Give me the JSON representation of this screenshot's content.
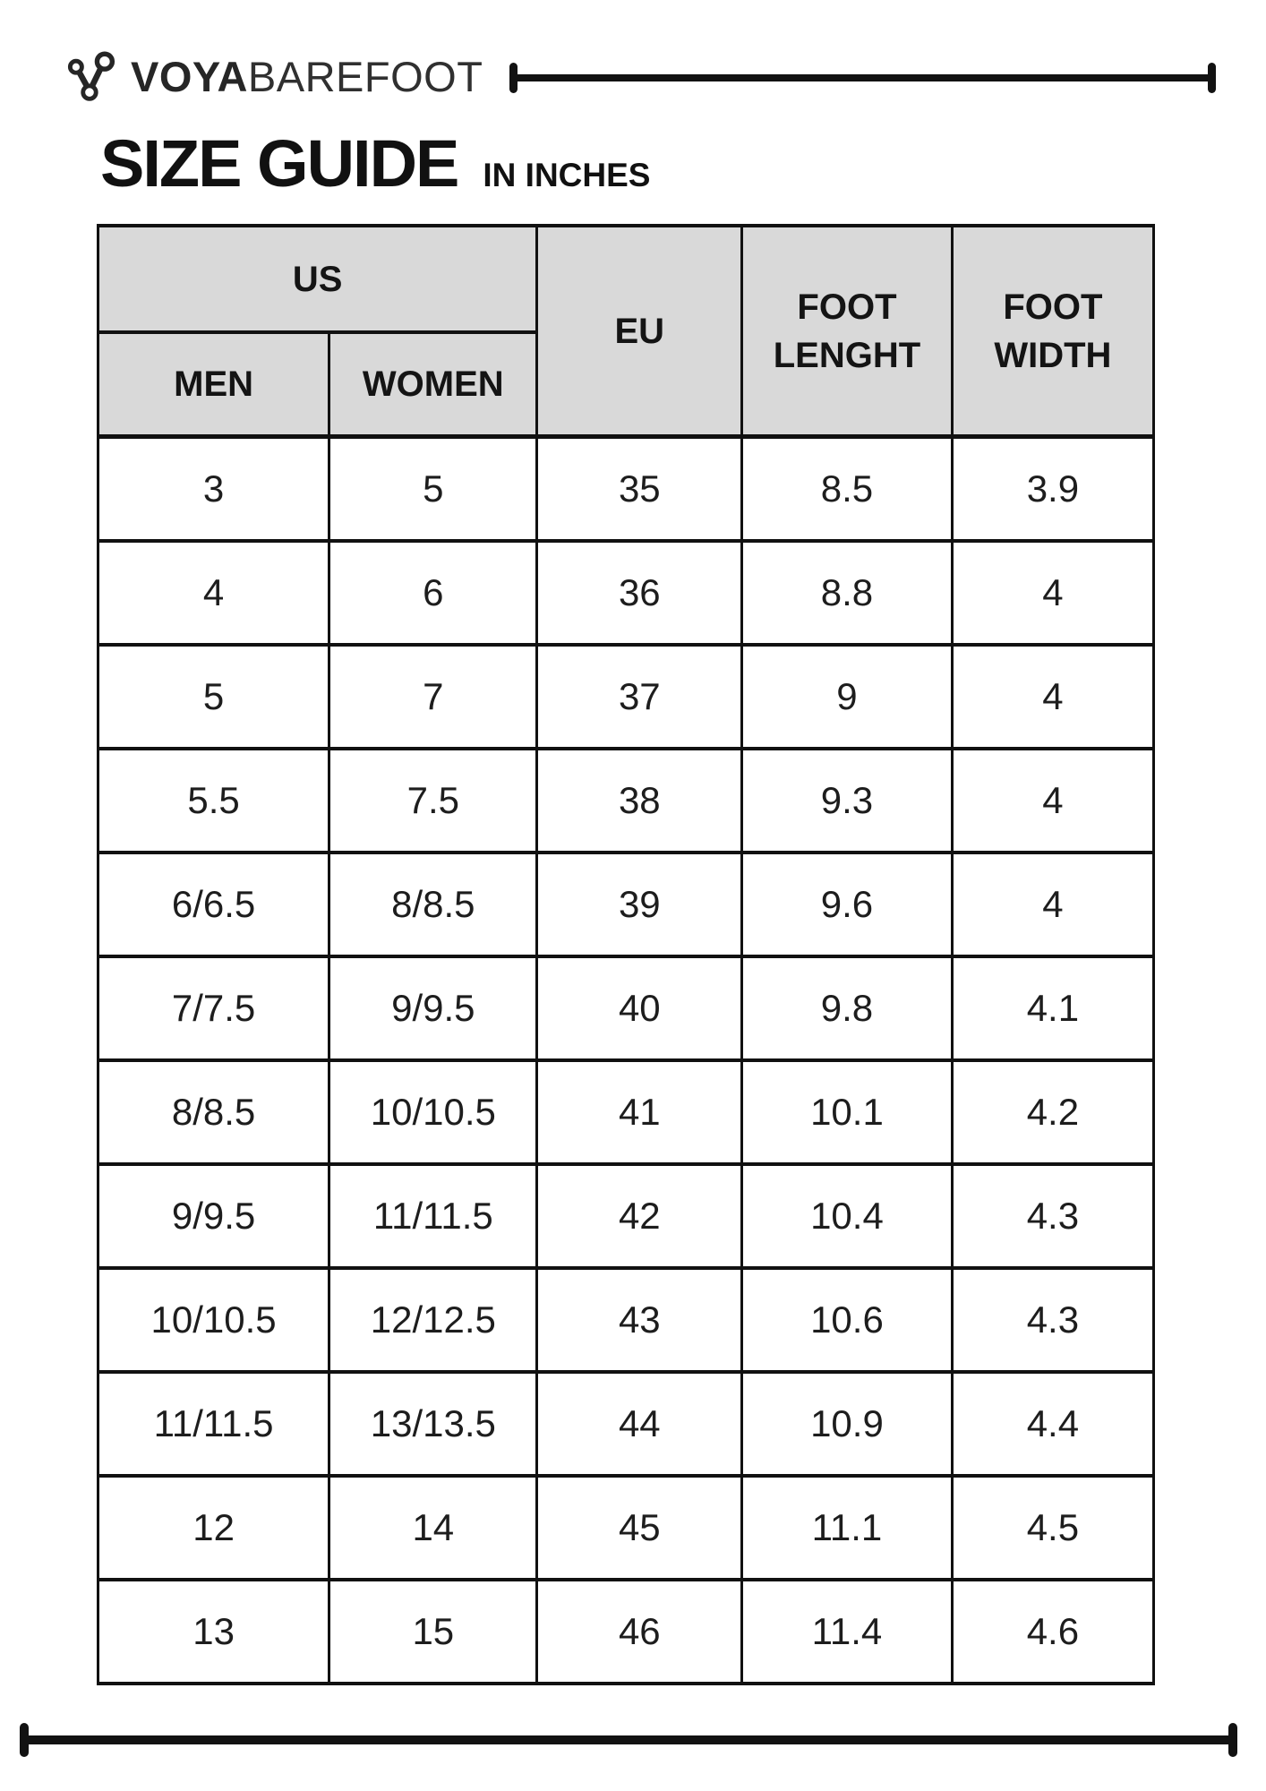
{
  "brand": {
    "voya": "VOYA",
    "barefoot": "BAREFOOT",
    "logo_icon": "molecule-icon"
  },
  "title": {
    "main": "SIZE GUIDE",
    "sub": "IN INCHES"
  },
  "colors": {
    "header_bg": "#d9d9d9",
    "border": "#111111",
    "text": "#1a1a1a"
  },
  "table": {
    "us_label": "US",
    "men_label": "MEN",
    "women_label": "WOMEN",
    "eu_label": "EU",
    "foot_length_label": "FOOT LENGHT",
    "foot_width_label": "FOOT WIDTH",
    "rows": [
      [
        "3",
        "5",
        "35",
        "8.5",
        "3.9"
      ],
      [
        "4",
        "6",
        "36",
        "8.8",
        "4"
      ],
      [
        "5",
        "7",
        "37",
        "9",
        "4"
      ],
      [
        "5.5",
        "7.5",
        "38",
        "9.3",
        "4"
      ],
      [
        "6/6.5",
        "8/8.5",
        "39",
        "9.6",
        "4"
      ],
      [
        "7/7.5",
        "9/9.5",
        "40",
        "9.8",
        "4.1"
      ],
      [
        "8/8.5",
        "10/10.5",
        "41",
        "10.1",
        "4.2"
      ],
      [
        "9/9.5",
        "11/11.5",
        "42",
        "10.4",
        "4.3"
      ],
      [
        "10/10.5",
        "12/12.5",
        "43",
        "10.6",
        "4.3"
      ],
      [
        "11/11.5",
        "13/13.5",
        "44",
        "10.9",
        "4.4"
      ],
      [
        "12",
        "14",
        "45",
        "11.1",
        "4.5"
      ],
      [
        "13",
        "15",
        "46",
        "11.4",
        "4.6"
      ]
    ]
  }
}
